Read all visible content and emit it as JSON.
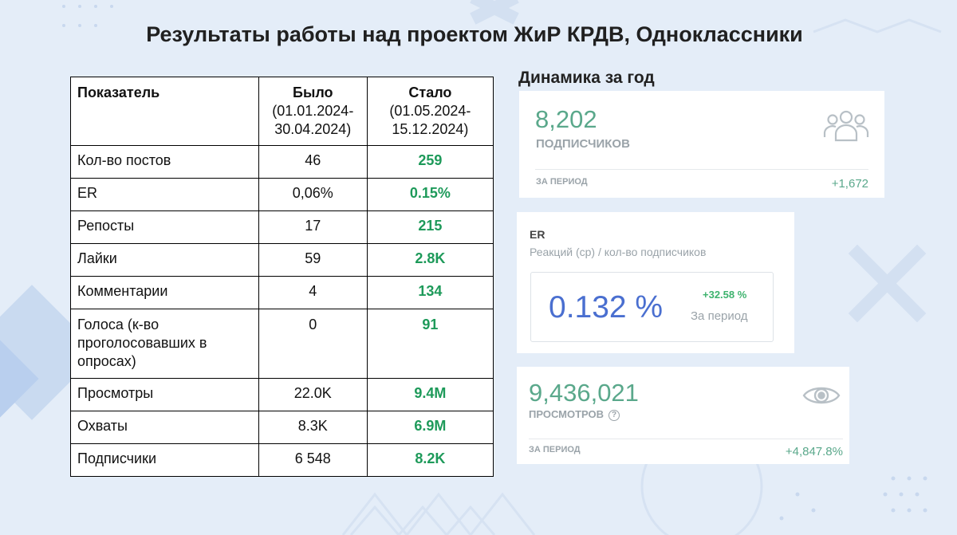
{
  "title": "Результаты работы над проектом ЖиР КРДВ,  Одноклассники",
  "table": {
    "headers": {
      "metric": "Показатель",
      "before_label": "Было",
      "before_range_1": "(01.01.2024-",
      "before_range_2": "30.04.2024)",
      "after_label": "Стало",
      "after_range_1": "(01.05.2024-",
      "after_range_2": "15.12.2024)"
    },
    "rows": [
      {
        "name": "Кол-во постов",
        "before": "46",
        "after": "259"
      },
      {
        "name": "ER",
        "before": "0,06%",
        "after": "0.15%"
      },
      {
        "name": "Репосты",
        "before": "17",
        "after": "215"
      },
      {
        "name": "Лайки",
        "before": "59",
        "after": "2.8K"
      },
      {
        "name": "Комментарии",
        "before": "4",
        "after": "134"
      },
      {
        "name": "Голоса (к-во проголосовавших в опросах)",
        "before": "0",
        "after": "91"
      },
      {
        "name": "Просмотры",
        "before": "22.0K",
        "after": "9.4M"
      },
      {
        "name": "Охваты",
        "before": "8.3K",
        "after": "6.9M"
      },
      {
        "name": "Подписчики",
        "before": "6 548",
        "after": "8.2K"
      }
    ]
  },
  "dynamics": {
    "title": "Динамика за год",
    "subscribers": {
      "value": "8,202",
      "label": "ПОДПИСЧИКОВ",
      "period_label": "ЗА ПЕРИОД",
      "delta": "+1,672",
      "icon": "users-icon"
    },
    "er": {
      "title": "ER",
      "subtitle": "Реакций (ср) / кол-во подписчиков",
      "value": "0.132 %",
      "delta": "+32.58 %",
      "period_label": "За период"
    },
    "views": {
      "value": "9,436,021",
      "label": "ПРОСМОТРОВ",
      "help_glyph": "?",
      "period_label": "ЗА ПЕРИОД",
      "delta": "+4,847.8%",
      "icon": "eye-icon"
    }
  },
  "colors": {
    "background": "#e4edf8",
    "increase_green": "#1e9a5a",
    "card_green": "#5aa88b",
    "er_blue": "#4a6fd0"
  }
}
